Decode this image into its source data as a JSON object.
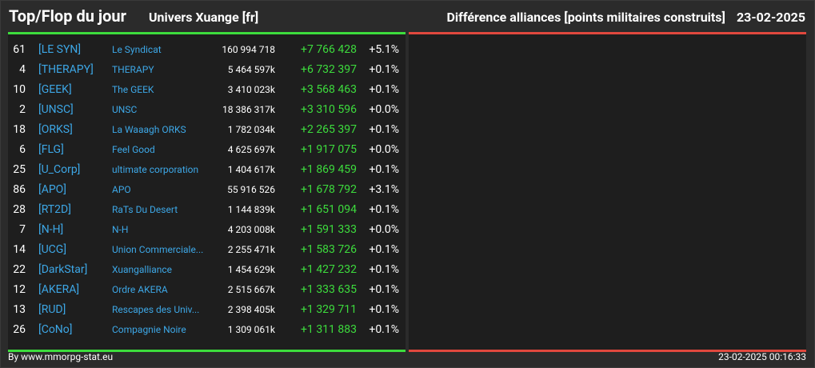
{
  "header": {
    "title": "Top/Flop du jour",
    "universe": "Univers Xuange [fr]",
    "subtitle": "Différence alliances [points militaires construits]",
    "date": "23-02-2025"
  },
  "colors": {
    "background": "#2b2b2b",
    "panel": "#1e1e1e",
    "top_accent": "#3ddc3d",
    "flop_accent": "#e0483e",
    "link": "#3da7e6"
  },
  "top": [
    {
      "rank": "61",
      "tag": "[LE SYN]",
      "name": "Le Syndicat",
      "points": "160 994 718",
      "diff": "+7 766 428",
      "pct": "+5.1%"
    },
    {
      "rank": "4",
      "tag": "[THERAPY]",
      "name": "THERAPY",
      "points": "5 464 597k",
      "diff": "+6 732 397",
      "pct": "+0.1%"
    },
    {
      "rank": "10",
      "tag": "[GEEK]",
      "name": "The GEEK",
      "points": "3 410 023k",
      "diff": "+3 568 463",
      "pct": "+0.1%"
    },
    {
      "rank": "2",
      "tag": "[UNSC]",
      "name": "UNSC",
      "points": "18 386 317k",
      "diff": "+3 310 596",
      "pct": "+0.0%"
    },
    {
      "rank": "18",
      "tag": "[ORKS]",
      "name": "La Waaagh ORKS",
      "points": "1 782 034k",
      "diff": "+2 265 397",
      "pct": "+0.1%"
    },
    {
      "rank": "6",
      "tag": "[FLG]",
      "name": "Feel Good",
      "points": "4 625 697k",
      "diff": "+1 917 075",
      "pct": "+0.0%"
    },
    {
      "rank": "25",
      "tag": "[U_Corp]",
      "name": "ultimate corporation",
      "points": "1 404 617k",
      "diff": "+1 869 459",
      "pct": "+0.1%"
    },
    {
      "rank": "86",
      "tag": "[APO]",
      "name": "APO",
      "points": "55 916 526",
      "diff": "+1 678 792",
      "pct": "+3.1%"
    },
    {
      "rank": "28",
      "tag": "[RT2D]",
      "name": "RaTs Du Desert",
      "points": "1 144 839k",
      "diff": "+1 651 094",
      "pct": "+0.1%"
    },
    {
      "rank": "7",
      "tag": "[N-H]",
      "name": "N-H",
      "points": "4 203 008k",
      "diff": "+1 591 333",
      "pct": "+0.0%"
    },
    {
      "rank": "14",
      "tag": "[UCG]",
      "name": "Union Commerciale...",
      "points": "2 255 471k",
      "diff": "+1 583 726",
      "pct": "+0.1%"
    },
    {
      "rank": "22",
      "tag": "[DarkStar]",
      "name": "Xuangalliance",
      "points": "1 454 629k",
      "diff": "+1 427 232",
      "pct": "+0.1%"
    },
    {
      "rank": "12",
      "tag": "[AKERA]",
      "name": "Ordre AKERA",
      "points": "2 515 667k",
      "diff": "+1 333 635",
      "pct": "+0.1%"
    },
    {
      "rank": "13",
      "tag": "[RUD]",
      "name": "Rescapes des Univ...",
      "points": "2 398 405k",
      "diff": "+1 329 711",
      "pct": "+0.1%"
    },
    {
      "rank": "26",
      "tag": "[CoNo]",
      "name": "Compagnie Noire",
      "points": "1 309 061k",
      "diff": "+1 311 883",
      "pct": "+0.1%"
    }
  ],
  "footer": {
    "source": "By www.mmorpg-stat.eu",
    "timestamp": "23-02-2025 00:16:33"
  }
}
